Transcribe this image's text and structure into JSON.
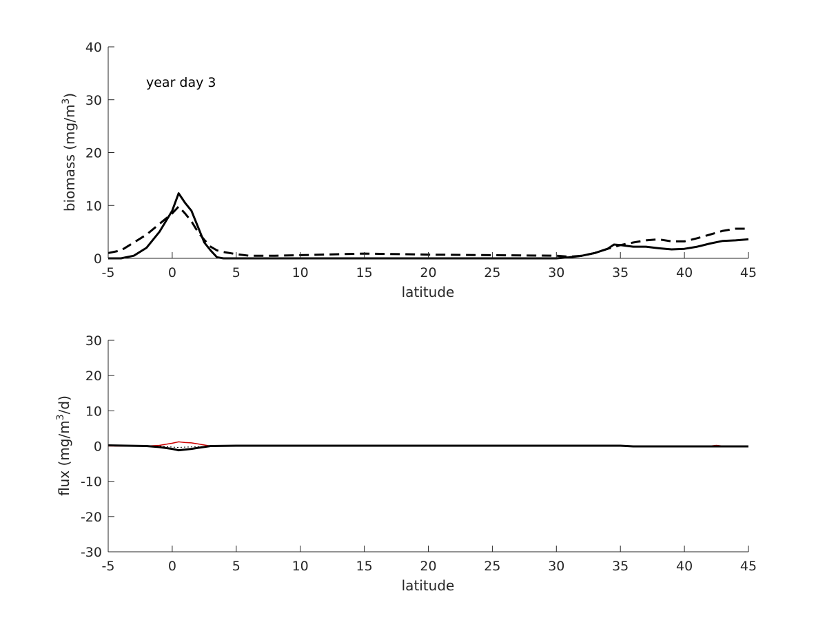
{
  "chart_data": [
    {
      "type": "line",
      "panel": "top",
      "xlabel": "latitude",
      "ylabel_main": "biomass (mg/m",
      "ylabel_sup": "3",
      "ylabel_end": ")",
      "annotation": "year day 3",
      "xlim": [
        -5,
        45
      ],
      "ylim": [
        0,
        40
      ],
      "xticks": [
        -5,
        0,
        5,
        10,
        15,
        20,
        25,
        30,
        35,
        40,
        45
      ],
      "yticks": [
        0,
        10,
        20,
        30,
        40
      ],
      "grid": false,
      "series": [
        {
          "style": "solid",
          "color": "#000000",
          "x": [
            -5,
            -4,
            -3,
            -2,
            -1,
            0,
            0.5,
            1,
            1.5,
            2,
            2.5,
            3,
            3.5,
            4,
            5,
            7,
            10,
            15,
            20,
            25,
            30,
            31,
            32,
            33,
            34,
            34.5,
            35,
            36,
            37,
            38,
            39,
            40,
            41,
            42,
            43,
            44,
            45
          ],
          "y": [
            0,
            0,
            0.5,
            2,
            5,
            9,
            12.3,
            10.5,
            9,
            6,
            3,
            1.5,
            0.2,
            0,
            0,
            0,
            0,
            0,
            0,
            0,
            0,
            0.2,
            0.5,
            1,
            1.8,
            2.6,
            2.5,
            2.2,
            2.2,
            1.9,
            1.7,
            1.8,
            2.2,
            2.8,
            3.3,
            3.4,
            3.6
          ]
        },
        {
          "style": "dashed",
          "color": "#000000",
          "x": [
            -5,
            -4,
            -3,
            -2,
            -1,
            0,
            0.5,
            1,
            1.5,
            2,
            2.5,
            3,
            3.5,
            4,
            5,
            6,
            8,
            10,
            15,
            20,
            25,
            30,
            31,
            32,
            33,
            34,
            35,
            36,
            37,
            38,
            39,
            40,
            41,
            42,
            43,
            44,
            45
          ],
          "y": [
            1,
            1.5,
            3,
            4.5,
            6.5,
            8.5,
            9.8,
            8.5,
            7,
            5,
            3.5,
            2.2,
            1.5,
            1.2,
            0.8,
            0.5,
            0.5,
            0.6,
            0.9,
            0.7,
            0.6,
            0.5,
            0.3,
            0.5,
            1,
            1.8,
            2.5,
            3,
            3.4,
            3.6,
            3.2,
            3.2,
            3.8,
            4.5,
            5.2,
            5.6,
            5.6
          ]
        }
      ]
    },
    {
      "type": "line",
      "panel": "bottom",
      "xlabel": "latitude",
      "ylabel_main": "flux (mg/m",
      "ylabel_sup": "3",
      "ylabel_end": "/d)",
      "xlim": [
        -5,
        45
      ],
      "ylim": [
        -30,
        30
      ],
      "xticks": [
        -5,
        0,
        5,
        10,
        15,
        20,
        25,
        30,
        35,
        40,
        45
      ],
      "yticks": [
        -30,
        -20,
        -10,
        0,
        10,
        20,
        30
      ],
      "grid": false,
      "series": [
        {
          "style": "solid",
          "color": "#cc0000",
          "width": 1.5,
          "x": [
            -5,
            -2,
            -1,
            0,
            0.5,
            1,
            1.5,
            2,
            3,
            5,
            42,
            42.5,
            43,
            45
          ],
          "y": [
            0,
            0,
            0.2,
            0.8,
            1.2,
            1.0,
            0.9,
            0.6,
            0,
            0,
            0,
            0.2,
            0,
            0
          ]
        },
        {
          "style": "dotted",
          "color": "#000000",
          "width": 1,
          "x": [
            -5,
            -1,
            0,
            0.5,
            1,
            2,
            3,
            5,
            45
          ],
          "y": [
            0,
            0,
            -0.3,
            -0.4,
            -0.3,
            -0.2,
            0,
            0,
            0
          ]
        },
        {
          "style": "solid",
          "color": "#000000",
          "width": 3,
          "x": [
            -5,
            -2,
            -1,
            0,
            0.5,
            1,
            1.5,
            2,
            3,
            5,
            35,
            36,
            45
          ],
          "y": [
            0.2,
            0,
            -0.3,
            -0.8,
            -1.2,
            -1.0,
            -0.8,
            -0.5,
            0,
            0.1,
            0.1,
            -0.1,
            -0.1
          ]
        }
      ]
    }
  ]
}
